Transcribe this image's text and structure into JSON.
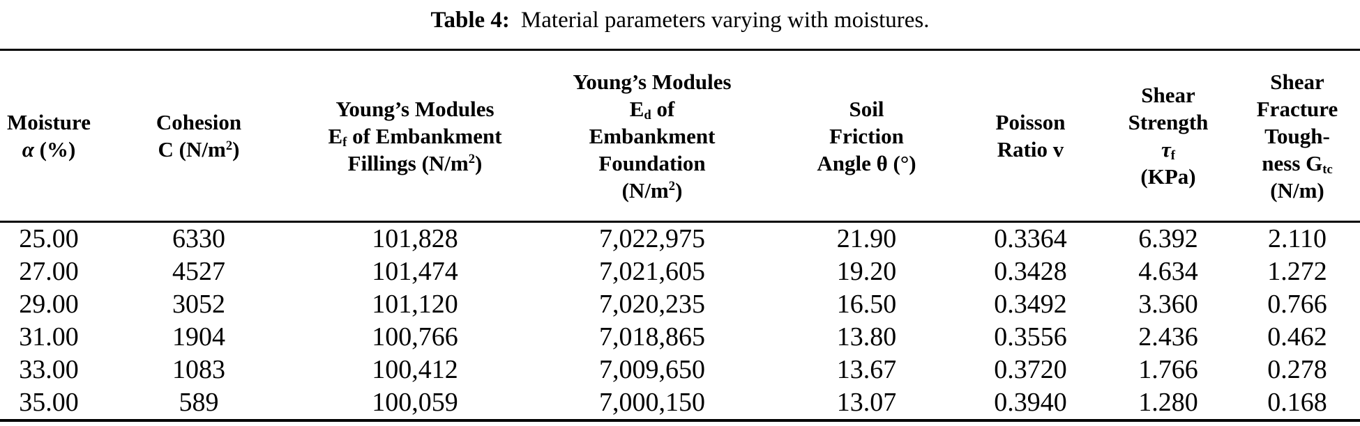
{
  "caption": {
    "label": "Table 4:",
    "text": "Material parameters varying with moistures."
  },
  "colors": {
    "text": "#000000",
    "background": "#ffffff",
    "rule": "#000000"
  },
  "table": {
    "header": [
      {
        "id": "moisture",
        "lines": [
          "Moisture",
          "*α* (%)"
        ]
      },
      {
        "id": "cohesion",
        "lines": [
          "Cohesion",
          "C (N/m^2^)"
        ]
      },
      {
        "id": "youngs-modules-fillings",
        "lines": [
          "Young’s Modules",
          "E~f~ of Embankment",
          "Fillings (N/m^2^)"
        ]
      },
      {
        "id": "youngs-modules-foundation",
        "lines": [
          "Young’s Modules",
          "E~d~ of",
          "Embankment",
          "Foundation",
          "(N/m^2^)"
        ]
      },
      {
        "id": "soil-friction-angle",
        "lines": [
          "Soil",
          "Friction",
          "Angle θ (°)"
        ]
      },
      {
        "id": "poisson-ratio",
        "lines": [
          "Poisson",
          "Ratio v"
        ]
      },
      {
        "id": "shear-strength",
        "lines": [
          "Shear",
          "Strength",
          "*τ*~f~",
          "(KPa)"
        ]
      },
      {
        "id": "shear-fracture-toughness",
        "lines": [
          "Shear",
          "Fracture",
          "Tough-",
          "ness G~tc~",
          "(N/m)"
        ]
      }
    ],
    "rows": [
      [
        "25.00",
        "6330",
        "101,828",
        "7,022,975",
        "21.90",
        "0.3364",
        "6.392",
        "2.110"
      ],
      [
        "27.00",
        "4527",
        "101,474",
        "7,021,605",
        "19.20",
        "0.3428",
        "4.634",
        "1.272"
      ],
      [
        "29.00",
        "3052",
        "101,120",
        "7,020,235",
        "16.50",
        "0.3492",
        "3.360",
        "0.766"
      ],
      [
        "31.00",
        "1904",
        "100,766",
        "7,018,865",
        "13.80",
        "0.3556",
        "2.436",
        "0.462"
      ],
      [
        "33.00",
        "1083",
        "100,412",
        "7,009,650",
        "13.67",
        "0.3720",
        "1.766",
        "0.278"
      ],
      [
        "35.00",
        "589",
        "100,059",
        "7,000,150",
        "13.07",
        "0.3940",
        "1.280",
        "0.168"
      ]
    ]
  }
}
